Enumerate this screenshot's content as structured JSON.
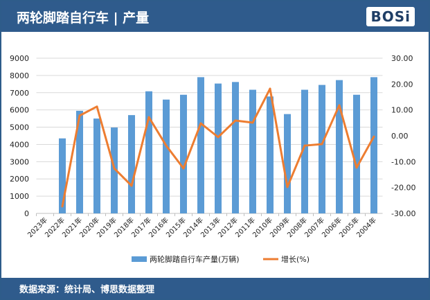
{
  "title": "两轮脚踏自行车 | 产量",
  "logo": "BOSi",
  "source": "数据来源：统计局、博思数据整理",
  "colors": {
    "bar": "#5b9bd5",
    "line": "#ed7d31",
    "header": "#2f5b8c"
  },
  "chart_data": {
    "type": "bar",
    "title": "两轮脚踏自行车 | 产量",
    "categories": [
      "2023年",
      "2022年",
      "2021年",
      "2020年",
      "2019年",
      "2018年",
      "2017年",
      "2016年",
      "2015年",
      "2014年",
      "2013年",
      "2012年",
      "2011年",
      "2010年",
      "2009年",
      "2008年",
      "2007年",
      "2006年",
      "2005年",
      "2004年"
    ],
    "series": [
      {
        "name": "两轮脚踏自行车产量(万辆)",
        "type": "bar",
        "axis": "left",
        "values": [
          null,
          4350,
          5950,
          5500,
          4980,
          5700,
          7080,
          6600,
          6880,
          7900,
          7530,
          7620,
          7170,
          6780,
          5760,
          7170,
          7450,
          7730,
          6880,
          7900
        ]
      },
      {
        "name": "增长(%)",
        "type": "line",
        "axis": "right",
        "values": [
          null,
          -27.3,
          7.8,
          11.3,
          -12.6,
          -19.3,
          7.2,
          -3.8,
          -12.6,
          4.8,
          -0.5,
          5.9,
          5.1,
          18.2,
          -19.8,
          -3.8,
          -3.2,
          11.8,
          -12.3,
          -0.3
        ]
      }
    ],
    "ylim": [
      0,
      9000
    ],
    "yticks": [
      "0",
      "1000",
      "2000",
      "3000",
      "4000",
      "5000",
      "6000",
      "7000",
      "8000",
      "9000"
    ],
    "y2lim": [
      -30,
      30
    ],
    "y2ticks": [
      "-30.00",
      "-20.00",
      "-10.00",
      "0.00",
      "10.00",
      "20.00",
      "30.00"
    ],
    "grid": true,
    "legend": "bottom"
  }
}
